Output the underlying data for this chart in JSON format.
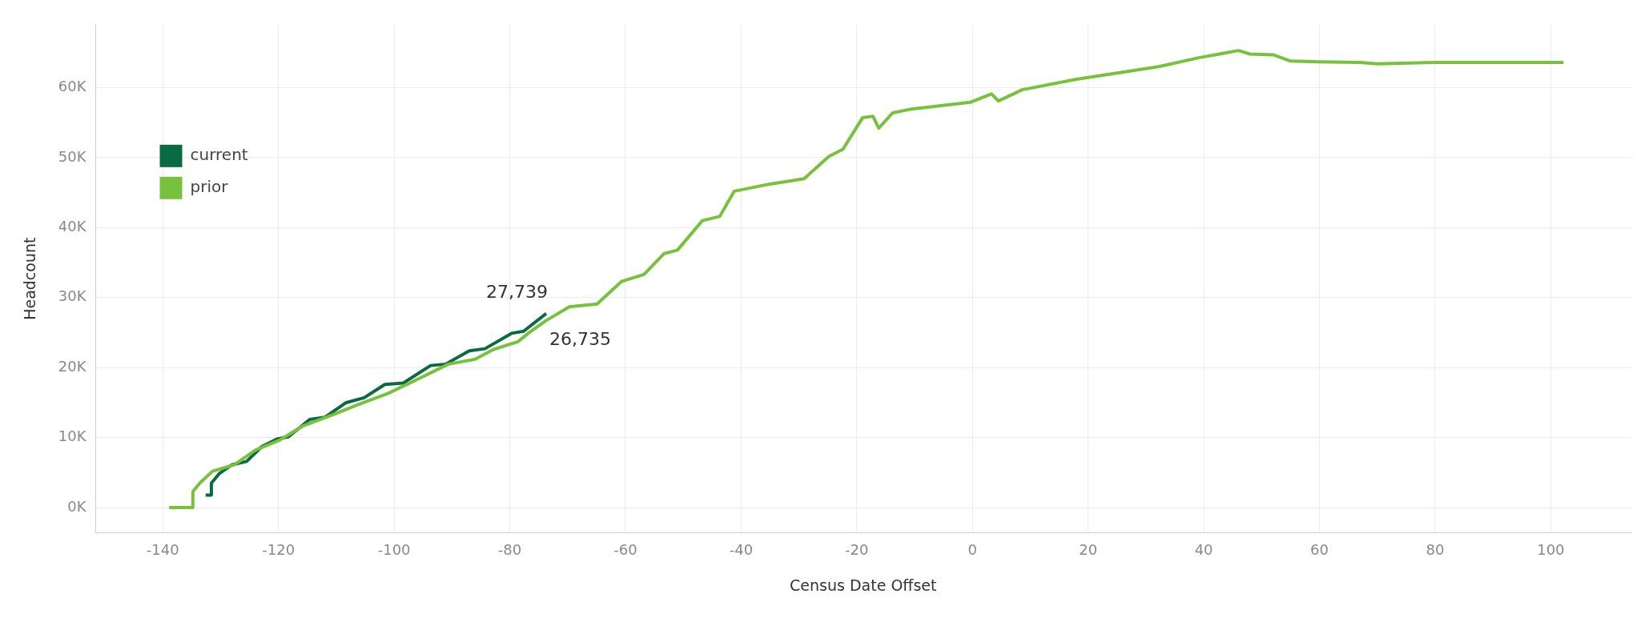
{
  "chart_data": {
    "type": "line",
    "xlabel": "Census Date Offset",
    "ylabel": "Headcount",
    "xlim": [
      -151.6,
      113.8
    ],
    "xticks": [
      -140,
      -120,
      -100,
      -80,
      -60,
      -40,
      -20,
      0,
      20,
      40,
      60,
      80,
      100
    ],
    "ylim": [
      -3600,
      69000
    ],
    "yticks": [
      {
        "value": 0,
        "label": "0K"
      },
      {
        "value": 10000,
        "label": "10K"
      },
      {
        "value": 20000,
        "label": "20K"
      },
      {
        "value": 30000,
        "label": "30K"
      },
      {
        "value": 40000,
        "label": "40K"
      },
      {
        "value": 50000,
        "label": "50K"
      },
      {
        "value": 60000,
        "label": "60K"
      }
    ],
    "grid": true,
    "legend": "top left",
    "marker": "none",
    "line_style": "solid",
    "annotations": [
      {
        "text": "27,739",
        "x": -73.7,
        "y": 27739
      },
      {
        "text": "26,735",
        "x": -73.7,
        "y": 26735
      }
    ],
    "series": [
      {
        "name": "prior",
        "color": "#78c13c",
        "x": [
          -138.9,
          -134.8,
          -134.8,
          -133.6,
          -131.4,
          -127.7,
          -124,
          -119.9,
          -115.7,
          -110.5,
          -106.3,
          -101.1,
          -96.3,
          -90.6,
          -86,
          -82.8,
          -78.6,
          -76.5,
          -73.7,
          -69.7,
          -64.9,
          -60.7,
          -56.8,
          -53.3,
          -51,
          -46.7,
          -43.7,
          -41.2,
          -35.2,
          -29.1,
          -24.8,
          -22.4,
          -19,
          -17.2,
          -16.2,
          -13.8,
          -10.8,
          -0.4,
          3.3,
          4.5,
          8.6,
          18,
          25.9,
          32.2,
          39.3,
          44,
          46,
          48,
          52,
          55,
          60,
          67,
          70,
          80,
          102.2
        ],
        "values": [
          0,
          0,
          2300,
          3500,
          5200,
          6100,
          8200,
          9600,
          11700,
          13300,
          14700,
          16300,
          18200,
          20500,
          21200,
          22600,
          23700,
          25100,
          26735,
          28700,
          29100,
          32300,
          33300,
          36300,
          36800,
          41000,
          41600,
          45200,
          46200,
          47000,
          50200,
          51200,
          55700,
          55900,
          54200,
          56400,
          56900,
          57900,
          59100,
          58100,
          59700,
          61200,
          62200,
          63000,
          64300,
          65000,
          65300,
          64800,
          64700,
          63800,
          63700,
          63600,
          63400,
          63600,
          63600
        ]
      },
      {
        "name": "current",
        "color": "#0a6b43",
        "x": [
          -132.6,
          -131.6,
          -131.6,
          -130.2,
          -128.1,
          -125.5,
          -122.9,
          -120.3,
          -118.3,
          -114.6,
          -112,
          -108.3,
          -105.2,
          -101.6,
          -98.4,
          -93.7,
          -91.1,
          -87,
          -84.3,
          -79.7,
          -77.6,
          -73.7
        ],
        "values": [
          1800,
          1800,
          3500,
          4900,
          6100,
          6600,
          8700,
          9800,
          10100,
          12600,
          12900,
          15000,
          15700,
          17600,
          17800,
          20300,
          20500,
          22400,
          22700,
          24900,
          25200,
          27739
        ]
      }
    ]
  }
}
